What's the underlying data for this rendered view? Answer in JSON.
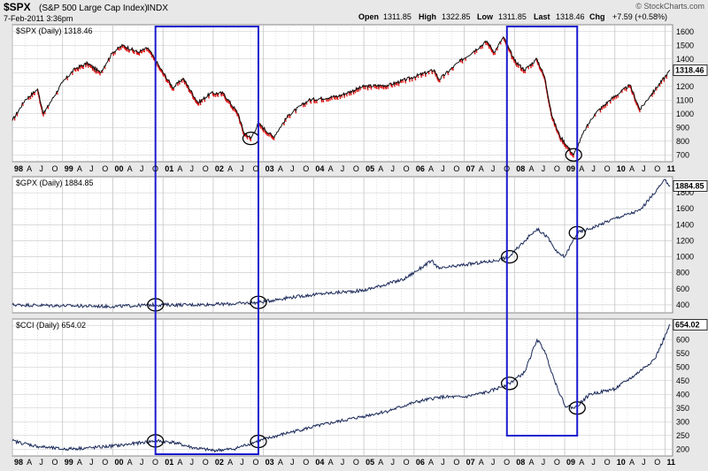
{
  "header": {
    "symbol": "$SPX",
    "name": "(S&P 500 Large Cap Index)",
    "exchange": "INDX",
    "timestamp": "7-Feb-2011 3:36pm",
    "brand": "© StockCharts.com",
    "quote": [
      {
        "label": "Open",
        "value": "1311.85"
      },
      {
        "label": "High",
        "value": "1322.85"
      },
      {
        "label": "Low",
        "value": "1311.85"
      },
      {
        "label": "Last",
        "value": "1318.46"
      },
      {
        "label": "Chg",
        "value": "+7.59 (+0.58%)"
      }
    ]
  },
  "colors": {
    "frame_bg": "#e8e8e8",
    "panel_bg": "#ffffff",
    "grid": "#c4c4c4",
    "spx_line": "#111111",
    "spx_down": "#dd1111",
    "gpx_line": "#1b2a5a",
    "cci_line": "#1b2a5a",
    "highlight_box": "#1a1ad0",
    "ellipse": "#000000"
  },
  "x_axis": {
    "labels": [
      "98",
      "A",
      "J",
      "O",
      "99",
      "A",
      "J",
      "O",
      "00",
      "A",
      "J",
      "O",
      "01",
      "A",
      "J",
      "O",
      "02",
      "A",
      "J",
      "O",
      "03",
      "A",
      "J",
      "O",
      "04",
      "A",
      "J",
      "O",
      "05",
      "A",
      "J",
      "O",
      "06",
      "A",
      "J",
      "O",
      "07",
      "A",
      "J",
      "O",
      "08",
      "A",
      "J",
      "O",
      "09",
      "A",
      "J",
      "O",
      "10",
      "A",
      "J",
      "O",
      "11"
    ],
    "year_labels": [
      "98",
      "99",
      "00",
      "01",
      "02",
      "03",
      "04",
      "05",
      "06",
      "07",
      "08",
      "09",
      "10",
      "11"
    ]
  },
  "chart_data": [
    {
      "type": "line",
      "title": "$SPX (Daily) 1318.46",
      "last_label": "1318.46",
      "ylim": [
        650,
        1650
      ],
      "yticks": [
        700,
        800,
        900,
        1000,
        1100,
        1200,
        1300,
        1400,
        1500,
        1600
      ],
      "series": [
        {
          "name": "$SPX",
          "x": [
            1998.0,
            1998.25,
            1998.5,
            1998.62,
            1998.75,
            1999.0,
            1999.25,
            1999.5,
            1999.75,
            2000.0,
            2000.2,
            2000.5,
            2000.7,
            2000.95,
            2001.2,
            2001.4,
            2001.7,
            2001.95,
            2002.2,
            2002.5,
            2002.6,
            2002.75,
            2002.9,
            2003.2,
            2003.5,
            2003.9,
            2004.5,
            2005.0,
            2005.5,
            2006.0,
            2006.4,
            2006.5,
            2006.9,
            2007.2,
            2007.45,
            2007.6,
            2007.78,
            2008.0,
            2008.2,
            2008.45,
            2008.6,
            2008.75,
            2008.9,
            2009.18,
            2009.4,
            2009.6,
            2009.9,
            2010.3,
            2010.5,
            2010.7,
            2011.1
          ],
          "values": [
            950,
            1100,
            1180,
            1000,
            1080,
            1230,
            1330,
            1370,
            1300,
            1450,
            1500,
            1450,
            1480,
            1330,
            1190,
            1260,
            1080,
            1150,
            1150,
            1000,
            870,
            820,
            930,
            830,
            990,
            1100,
            1130,
            1200,
            1210,
            1270,
            1320,
            1250,
            1380,
            1460,
            1530,
            1450,
            1560,
            1390,
            1320,
            1400,
            1270,
            980,
            840,
            700,
            880,
            1000,
            1100,
            1210,
            1030,
            1130,
            1318
          ]
        }
      ],
      "markers": [
        {
          "x": 2002.75,
          "y": 820
        },
        {
          "x": 2009.18,
          "y": 700
        }
      ]
    },
    {
      "type": "line",
      "title": "$GPX (Daily) 1884.85",
      "last_label": "1884.85",
      "ylim": [
        300,
        2000
      ],
      "yticks": [
        400,
        600,
        800,
        1000,
        1200,
        1400,
        1600,
        1800
      ],
      "series": [
        {
          "name": "$GPX",
          "x": [
            1998.0,
            1999.0,
            2000.0,
            2000.85,
            2001.5,
            2002.3,
            2002.9,
            2003.5,
            2004.2,
            2005.0,
            2005.8,
            2006.35,
            2006.5,
            2007.0,
            2007.6,
            2007.9,
            2008.2,
            2008.45,
            2008.65,
            2008.85,
            2009.0,
            2009.25,
            2009.5,
            2010.0,
            2010.5,
            2011.0,
            2011.1
          ],
          "values": [
            400,
            390,
            380,
            400,
            400,
            410,
            430,
            490,
            540,
            580,
            720,
            950,
            850,
            900,
            950,
            1000,
            1200,
            1350,
            1250,
            1050,
            1000,
            1300,
            1350,
            1480,
            1580,
            1960,
            1885
          ]
        }
      ],
      "markers": [
        {
          "x": 2000.85,
          "y": 400
        },
        {
          "x": 2002.9,
          "y": 430
        },
        {
          "x": 2007.9,
          "y": 1000
        },
        {
          "x": 2009.25,
          "y": 1300
        }
      ]
    },
    {
      "type": "line",
      "title": "$CCI (Daily) 654.02",
      "last_label": "654.02",
      "ylim": [
        175,
        675
      ],
      "yticks": [
        200,
        250,
        300,
        350,
        400,
        450,
        500,
        550,
        600,
        650
      ],
      "series": [
        {
          "name": "$CCI",
          "x": [
            1998.0,
            1998.5,
            1999.0,
            1999.6,
            2000.2,
            2000.85,
            2001.2,
            2001.6,
            2002.0,
            2002.4,
            2002.9,
            2003.5,
            2004.2,
            2005.0,
            2005.5,
            2006.0,
            2006.5,
            2007.0,
            2007.5,
            2007.9,
            2008.2,
            2008.45,
            2008.6,
            2008.8,
            2009.0,
            2009.2,
            2009.5,
            2010.0,
            2010.4,
            2010.8,
            2011.1
          ],
          "values": [
            230,
            210,
            200,
            205,
            215,
            230,
            225,
            205,
            195,
            200,
            230,
            260,
            290,
            320,
            340,
            370,
            390,
            390,
            410,
            440,
            480,
            600,
            560,
            450,
            360,
            350,
            400,
            420,
            470,
            530,
            654
          ]
        }
      ],
      "markers": [
        {
          "x": 2000.85,
          "y": 230
        },
        {
          "x": 2002.9,
          "y": 228
        },
        {
          "x": 2007.9,
          "y": 440
        },
        {
          "x": 2009.25,
          "y": 350
        }
      ]
    }
  ],
  "highlight_ranges": [
    {
      "x0": 2000.85,
      "x1": 2002.9
    },
    {
      "x0": 2007.85,
      "x1": 2009.25
    }
  ]
}
